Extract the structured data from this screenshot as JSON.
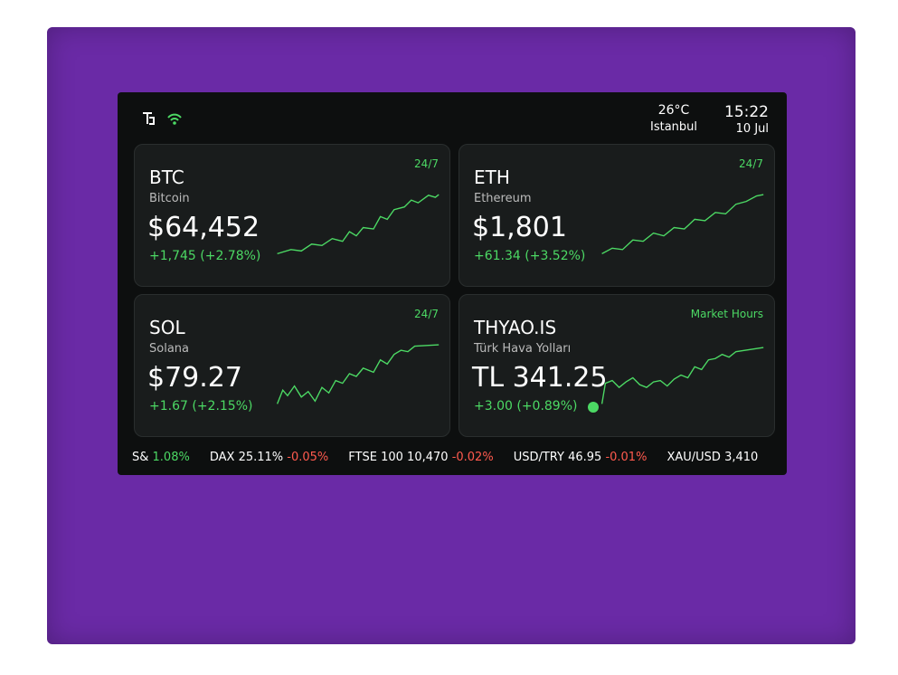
{
  "status": {
    "temperature": "26°C",
    "city": "Istanbul",
    "time": "15:22",
    "date": "10 Jul"
  },
  "cards": [
    {
      "symbol": "BTC",
      "name": "Bitcoin",
      "price": "$64,452",
      "change": "+1,745 (+2.78%)",
      "badge": "24/7"
    },
    {
      "symbol": "ETH",
      "name": "Ethereum",
      "price": "$1,801",
      "change": "+61.34 (+3.52%)",
      "badge": "24/7"
    },
    {
      "symbol": "SOL",
      "name": "Solana",
      "price": "$79.27",
      "change": "+1.67 (+2.15%)",
      "badge": "24/7"
    },
    {
      "symbol": "THYAO.IS",
      "name": "Türk Hava Yolları",
      "price": "TL 341.25",
      "change": "+3.00 (+0.89%)",
      "badge": "Market Hours"
    }
  ],
  "ticker": [
    {
      "name": "S&",
      "value": "",
      "change": "1.08%"
    },
    {
      "name": "DAX",
      "value": "25.11%",
      "change": "-0.05%"
    },
    {
      "name": "FTSE 100",
      "value": "10,470",
      "change": "-0.02%"
    },
    {
      "name": "USD/TRY",
      "value": "46.95",
      "change": "-0.01%"
    },
    {
      "name": "XAU/USD",
      "value": "3,410",
      "change": ""
    }
  ]
}
